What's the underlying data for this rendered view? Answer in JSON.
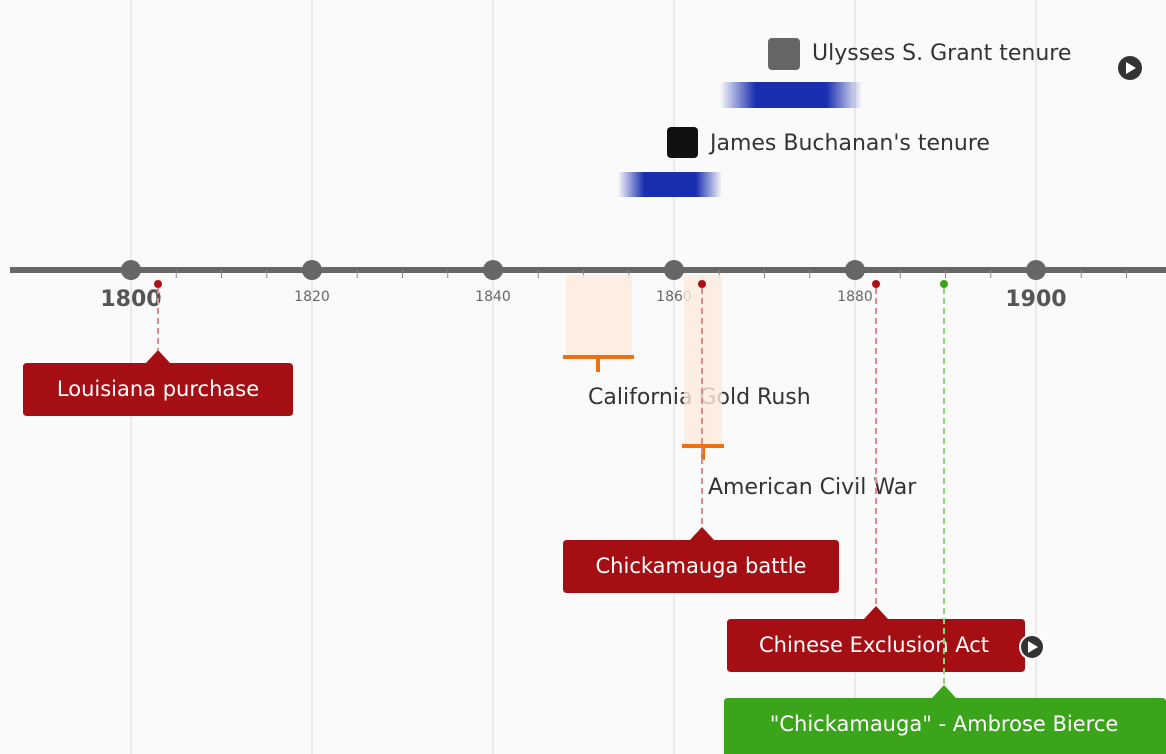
{
  "axis": {
    "ticks": [
      "1800",
      "1820",
      "1840",
      "1860",
      "1880",
      "1900"
    ]
  },
  "periods": [
    {
      "label": "Ulysses S. Grant tenure"
    },
    {
      "label": "James Buchanan's tenure"
    },
    {
      "label": "California Gold Rush"
    },
    {
      "label": "American Civil War"
    }
  ],
  "events": [
    {
      "label": "Louisiana purchase"
    },
    {
      "label": "Chickamauga battle"
    },
    {
      "label": "Chinese Exclusion Act"
    },
    {
      "label": "\"Chickamauga\" - Ambrose Bierce"
    }
  ]
}
